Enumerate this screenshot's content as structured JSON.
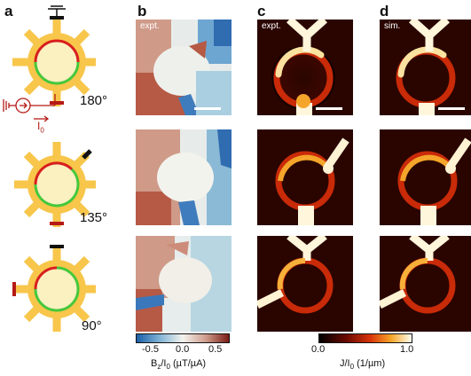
{
  "panel_labels": {
    "a": "a",
    "b": "b",
    "c": "c",
    "d": "d"
  },
  "angles": [
    "180°",
    "135°",
    "90°"
  ],
  "current_label": "I",
  "current_sub": "0",
  "tags": {
    "b": "expt.",
    "c": "expt.",
    "d": "sim."
  },
  "colorbar_b": {
    "ticks": [
      "-0.5",
      "0.0",
      "0.5"
    ],
    "label_main": "B",
    "label_sub": "z",
    "label_mid": "/I",
    "label_sub2": "0",
    "label_unit": " (µT/µA)"
  },
  "colorbar_c": {
    "ticks": [
      "0.0",
      "1.0"
    ],
    "label": "J/I",
    "label_sub": "0",
    "label_unit": " (1/µm)"
  },
  "colors": {
    "device": "#f7c64a",
    "disk": "#fbf0c0",
    "red_arc": "#d81e1e",
    "green_arc": "#44c83c",
    "contact_dark": "#111111",
    "contact_red": "#b51a16"
  }
}
